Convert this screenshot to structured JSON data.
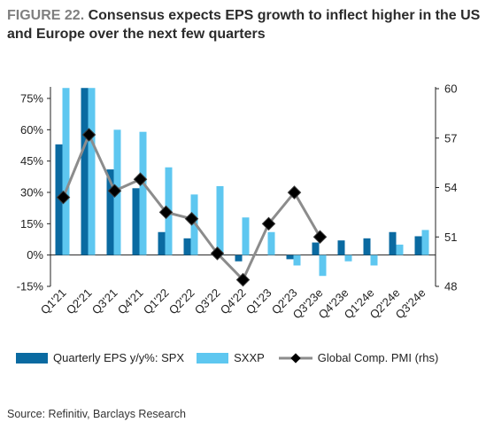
{
  "header": {
    "figure_label": "FIGURE 22.",
    "title": "Consensus expects EPS growth to inflect higher in the US and Europe over the next few quarters"
  },
  "source": "Source: Refinitiv, Barclays Research",
  "colors": {
    "spx": "#0a6aa1",
    "sxxp": "#5ec7f0",
    "pmi_line": "#8c8c8c",
    "pmi_marker": "#000000"
  },
  "chart_data": {
    "type": "bar",
    "categories": [
      "Q1'21",
      "Q2'21",
      "Q3'21",
      "Q4'21",
      "Q1'22",
      "Q2'22",
      "Q3'22",
      "Q4'22",
      "Q1'23",
      "Q2'23",
      "Q3'23e",
      "Q4'23e",
      "Q1'24e",
      "Q2'24e",
      "Q3'24e"
    ],
    "series": [
      {
        "name": "Quarterly EPS y/y%: SPX",
        "axis": "left",
        "kind": "bar",
        "values": [
          53,
          80,
          41,
          32,
          11,
          8,
          0,
          -3,
          0,
          -2,
          6,
          7,
          8,
          11,
          9
        ]
      },
      {
        "name": "SXXP",
        "axis": "left",
        "kind": "bar",
        "values": [
          80,
          80,
          60,
          59,
          42,
          29,
          33,
          18,
          11,
          -5,
          -10,
          -3,
          -5,
          5,
          12
        ]
      },
      {
        "name": "Global Comp. PMI (rhs)",
        "axis": "right",
        "kind": "line",
        "values": [
          53.4,
          57.2,
          53.8,
          54.5,
          52.5,
          52.1,
          50.0,
          48.4,
          51.8,
          53.7,
          51.0,
          null,
          null,
          null,
          null
        ]
      }
    ],
    "y_left": {
      "ticks": [
        "75%",
        "60%",
        "45%",
        "30%",
        "15%",
        "0%",
        "-15%"
      ],
      "tick_values": [
        75,
        60,
        45,
        30,
        15,
        0,
        -15
      ],
      "range": [
        -15,
        80
      ]
    },
    "y_right": {
      "ticks": [
        "60",
        "57",
        "54",
        "51",
        "48"
      ],
      "tick_values": [
        60,
        57,
        54,
        51,
        48
      ],
      "range": [
        48,
        60
      ]
    },
    "legend": "bottom",
    "grid": false
  }
}
